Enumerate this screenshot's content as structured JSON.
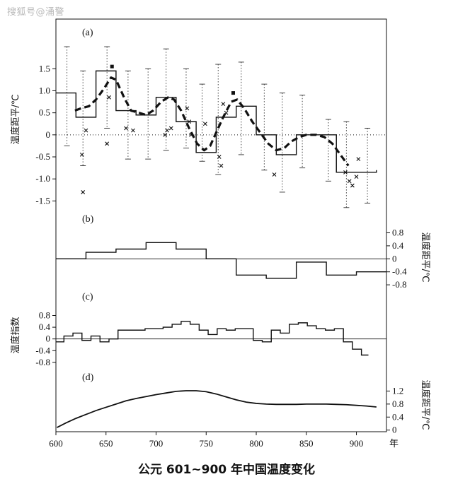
{
  "watermark": "搜狐号@涌警",
  "caption": "公元 601~900 年中国温度变化",
  "chart_data": {
    "type": "line",
    "x_axis": {
      "range": [
        600,
        930
      ],
      "ticks": [
        600,
        650,
        700,
        750,
        800,
        850,
        900
      ],
      "unit": "年"
    },
    "panels": [
      {
        "id": "a",
        "label": "(a)",
        "ylabel": "温度距平/℃",
        "ylabel_side": "left",
        "yticks": [
          1.5,
          1.0,
          0.5,
          0,
          -0.5,
          -1.0,
          -1.5
        ],
        "tick_labels": [
          "1.5",
          "1.0",
          "0.5",
          "0",
          "-0.5",
          "-1.0",
          "-1.5"
        ],
        "ylim": [
          -1.75,
          2.45
        ],
        "zero_line": "dotted",
        "step_series": [
          [
            600,
            0.95
          ],
          [
            620,
            0.4
          ],
          [
            640,
            1.45
          ],
          [
            660,
            0.55
          ],
          [
            680,
            0.45
          ],
          [
            700,
            0.85
          ],
          [
            720,
            0.3
          ],
          [
            740,
            -0.4
          ],
          [
            760,
            0.4
          ],
          [
            780,
            0.65
          ],
          [
            800,
            0.0
          ],
          [
            820,
            -0.45
          ],
          [
            840,
            0.0
          ],
          [
            880,
            -0.85
          ],
          [
            920,
            -0.8
          ]
        ],
        "smooth_series": [
          [
            619,
            0.55
          ],
          [
            625,
            0.6
          ],
          [
            633,
            0.65
          ],
          [
            640,
            0.8
          ],
          [
            648,
            1.05
          ],
          [
            655,
            1.3
          ],
          [
            660,
            1.25
          ],
          [
            668,
            0.85
          ],
          [
            675,
            0.55
          ],
          [
            683,
            0.5
          ],
          [
            690,
            0.45
          ],
          [
            697,
            0.55
          ],
          [
            705,
            0.75
          ],
          [
            712,
            0.85
          ],
          [
            718,
            0.8
          ],
          [
            725,
            0.55
          ],
          [
            733,
            0.15
          ],
          [
            741,
            -0.2
          ],
          [
            748,
            -0.35
          ],
          [
            754,
            -0.25
          ],
          [
            760,
            0.05
          ],
          [
            767,
            0.4
          ],
          [
            775,
            0.75
          ],
          [
            781,
            0.8
          ],
          [
            788,
            0.6
          ],
          [
            796,
            0.3
          ],
          [
            804,
            0.05
          ],
          [
            812,
            -0.2
          ],
          [
            820,
            -0.35
          ],
          [
            828,
            -0.3
          ],
          [
            835,
            -0.15
          ],
          [
            843,
            -0.05
          ],
          [
            850,
            0.0
          ],
          [
            860,
            0.0
          ],
          [
            868,
            -0.05
          ],
          [
            876,
            -0.2
          ],
          [
            884,
            -0.45
          ],
          [
            892,
            -0.7
          ]
        ],
        "error_bars": [
          [
            611,
            2.0,
            -0.25
          ],
          [
            627,
            1.45,
            -0.7
          ],
          [
            651,
            2.0,
            0.15
          ],
          [
            672,
            1.45,
            -0.55
          ],
          [
            692,
            1.5,
            -0.55
          ],
          [
            710,
            1.95,
            -0.35
          ],
          [
            730,
            1.5,
            -0.3
          ],
          [
            746,
            1.15,
            -0.6
          ],
          [
            762,
            1.6,
            -0.9
          ],
          [
            785,
            1.65,
            -0.45
          ],
          [
            808,
            1.15,
            -0.8
          ],
          [
            826,
            0.95,
            -1.3
          ],
          [
            846,
            0.9,
            -0.75
          ],
          [
            872,
            0.35,
            -1.05
          ],
          [
            890,
            0.3,
            -1.65
          ],
          [
            911,
            0.15,
            -1.55
          ]
        ],
        "cross_points": [
          [
            626,
            -0.45
          ],
          [
            630,
            0.1
          ],
          [
            627,
            -1.3
          ],
          [
            653,
            0.85
          ],
          [
            651,
            -0.2
          ],
          [
            670,
            0.15
          ],
          [
            677,
            0.1
          ],
          [
            709,
            0.0
          ],
          [
            711,
            0.1
          ],
          [
            715,
            0.15
          ],
          [
            731,
            0.6
          ],
          [
            733,
            0.3
          ],
          [
            735,
            0.0
          ],
          [
            749,
            0.25
          ],
          [
            763,
            -0.5
          ],
          [
            765,
            -0.7
          ],
          [
            767,
            0.7
          ],
          [
            770,
            0.5
          ],
          [
            818,
            -0.9
          ],
          [
            889,
            -0.85
          ],
          [
            893,
            -1.05
          ],
          [
            896,
            -1.15
          ],
          [
            900,
            -0.95
          ],
          [
            902,
            -0.55
          ]
        ],
        "square_points": [
          [
            656,
            1.55
          ],
          [
            777,
            0.95
          ]
        ]
      },
      {
        "id": "b",
        "label": "(b)",
        "ylabel": "温度距平/℃",
        "ylabel_side": "right",
        "yticks": [
          0.8,
          0.4,
          0,
          -0.4,
          -0.8
        ],
        "tick_labels": [
          "0.8",
          "0.4",
          "0",
          "-0.4",
          "-0.8"
        ],
        "ylim": [
          -0.95,
          1.05
        ],
        "zero_line": "solid",
        "step_series": [
          [
            600,
            0.0
          ],
          [
            630,
            0.2
          ],
          [
            660,
            0.3
          ],
          [
            690,
            0.5
          ],
          [
            720,
            0.3
          ],
          [
            750,
            0.0
          ],
          [
            780,
            -0.5
          ],
          [
            810,
            -0.6
          ],
          [
            840,
            -0.1
          ],
          [
            870,
            -0.5
          ],
          [
            900,
            -0.4
          ],
          [
            930,
            -0.4
          ]
        ]
      },
      {
        "id": "c",
        "label": "(c)",
        "ylabel": "温度指数",
        "ylabel_side": "left",
        "yticks": [
          0.8,
          0.4,
          0,
          -0.4,
          -0.8
        ],
        "tick_labels": [
          "0.8",
          "0.4",
          "0",
          "-0.4",
          "-0.8"
        ],
        "ylim": [
          -0.9,
          1.15
        ],
        "zero_line": "solid",
        "step_series": [
          [
            600,
            -0.1
          ],
          [
            608,
            0.1
          ],
          [
            617,
            0.2
          ],
          [
            626,
            -0.05
          ],
          [
            635,
            0.1
          ],
          [
            644,
            -0.1
          ],
          [
            653,
            0.0
          ],
          [
            662,
            0.3
          ],
          [
            671,
            0.3
          ],
          [
            680,
            0.3
          ],
          [
            689,
            0.35
          ],
          [
            698,
            0.35
          ],
          [
            707,
            0.4
          ],
          [
            716,
            0.5
          ],
          [
            725,
            0.6
          ],
          [
            734,
            0.5
          ],
          [
            743,
            0.3
          ],
          [
            752,
            0.15
          ],
          [
            761,
            0.35
          ],
          [
            770,
            0.3
          ],
          [
            779,
            0.35
          ],
          [
            788,
            0.35
          ],
          [
            797,
            -0.05
          ],
          [
            806,
            -0.1
          ],
          [
            815,
            0.3
          ],
          [
            824,
            0.2
          ],
          [
            833,
            0.5
          ],
          [
            842,
            0.55
          ],
          [
            851,
            0.45
          ],
          [
            860,
            0.35
          ],
          [
            869,
            0.3
          ],
          [
            878,
            0.35
          ],
          [
            887,
            -0.1
          ],
          [
            896,
            -0.35
          ],
          [
            905,
            -0.55
          ],
          [
            912,
            -0.55
          ]
        ]
      },
      {
        "id": "d",
        "label": "(d)",
        "ylabel": "温度距平/℃",
        "ylabel_side": "right",
        "yticks": [
          1.2,
          0.8,
          0.4,
          0
        ],
        "tick_labels": [
          "1.2",
          "0.8",
          "0.4",
          "0"
        ],
        "ylim": [
          -0.05,
          1.6
        ],
        "line_series": [
          [
            601,
            0.08
          ],
          [
            610,
            0.22
          ],
          [
            620,
            0.36
          ],
          [
            630,
            0.48
          ],
          [
            640,
            0.6
          ],
          [
            650,
            0.7
          ],
          [
            660,
            0.8
          ],
          [
            670,
            0.9
          ],
          [
            680,
            0.97
          ],
          [
            690,
            1.03
          ],
          [
            700,
            1.09
          ],
          [
            710,
            1.14
          ],
          [
            720,
            1.19
          ],
          [
            730,
            1.21
          ],
          [
            740,
            1.21
          ],
          [
            750,
            1.18
          ],
          [
            760,
            1.11
          ],
          [
            770,
            1.02
          ],
          [
            780,
            0.93
          ],
          [
            790,
            0.86
          ],
          [
            800,
            0.82
          ],
          [
            810,
            0.8
          ],
          [
            820,
            0.79
          ],
          [
            830,
            0.79
          ],
          [
            840,
            0.79
          ],
          [
            850,
            0.8
          ],
          [
            860,
            0.8
          ],
          [
            870,
            0.8
          ],
          [
            880,
            0.79
          ],
          [
            890,
            0.78
          ],
          [
            900,
            0.76
          ],
          [
            910,
            0.74
          ],
          [
            920,
            0.71
          ]
        ]
      }
    ]
  }
}
